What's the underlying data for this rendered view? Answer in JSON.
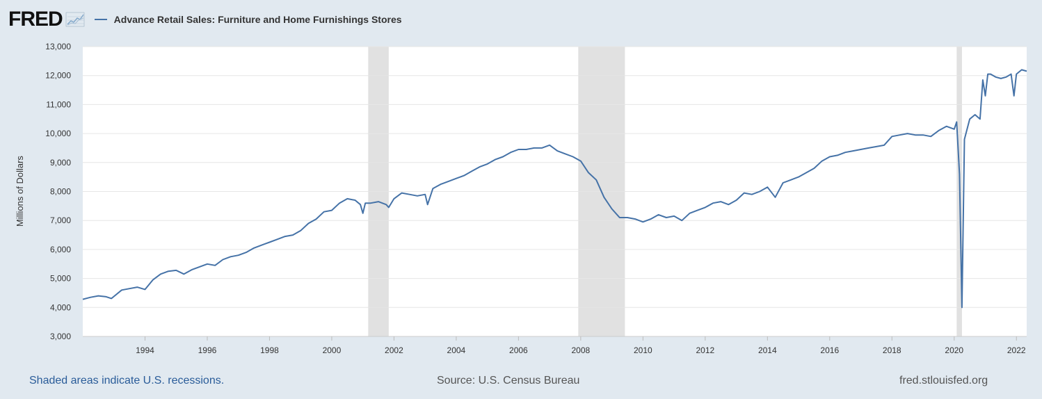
{
  "header": {
    "logo_text": "FRED",
    "series_title": "Advance Retail Sales: Furniture and Home Furnishings Stores"
  },
  "footer": {
    "recession_note": "Shaded areas indicate U.S. recessions.",
    "source": "Source: U.S. Census Bureau",
    "site": "fred.stlouisfed.org"
  },
  "colors": {
    "background": "#e1e9f0",
    "plot_background": "#ffffff",
    "line": "#4572a7",
    "recession_shade": "#e1e1e1",
    "gridline": "#e6e6e6",
    "footer_link": "#2a5c99"
  },
  "icons": [
    "fred-logo",
    "chart-icon"
  ],
  "chart_data": {
    "type": "line",
    "title": "Advance Retail Sales: Furniture and Home Furnishings Stores",
    "xlabel": "",
    "ylabel": "Millions of Dollars",
    "xlim": [
      1992.0,
      2022.33
    ],
    "ylim": [
      3000,
      13000
    ],
    "y_ticks": [
      3000,
      4000,
      5000,
      6000,
      7000,
      8000,
      9000,
      10000,
      11000,
      12000,
      13000
    ],
    "y_tick_labels": [
      "3,000",
      "4,000",
      "5,000",
      "6,000",
      "7,000",
      "8,000",
      "9,000",
      "10,000",
      "11,000",
      "12,000",
      "13,000"
    ],
    "x_ticks": [
      1994,
      1996,
      1998,
      2000,
      2002,
      2004,
      2006,
      2008,
      2010,
      2012,
      2014,
      2016,
      2018,
      2020,
      2022
    ],
    "x_tick_labels": [
      "1994",
      "1996",
      "1998",
      "2000",
      "2002",
      "2004",
      "2006",
      "2008",
      "2010",
      "2012",
      "2014",
      "2016",
      "2018",
      "2020",
      "2022"
    ],
    "grid": "horizontal",
    "legend": "top-left",
    "recessions": [
      [
        2001.17,
        2001.83
      ],
      [
        2007.92,
        2009.42
      ],
      [
        2020.08,
        2020.25
      ]
    ],
    "series": [
      {
        "name": "Advance Retail Sales: Furniture and Home Furnishings Stores",
        "x": [
          1992.0,
          1992.25,
          1992.5,
          1992.75,
          1992.92,
          1993.0,
          1993.25,
          1993.5,
          1993.75,
          1994.0,
          1994.25,
          1994.5,
          1994.75,
          1995.0,
          1995.25,
          1995.5,
          1995.75,
          1996.0,
          1996.25,
          1996.5,
          1996.75,
          1997.0,
          1997.25,
          1997.5,
          1997.75,
          1998.0,
          1998.25,
          1998.5,
          1998.75,
          1999.0,
          1999.25,
          1999.5,
          1999.75,
          2000.0,
          2000.25,
          2000.5,
          2000.75,
          2000.92,
          2001.0,
          2001.08,
          2001.25,
          2001.5,
          2001.75,
          2001.83,
          2002.0,
          2002.25,
          2002.5,
          2002.75,
          2003.0,
          2003.08,
          2003.25,
          2003.5,
          2003.75,
          2004.0,
          2004.25,
          2004.5,
          2004.75,
          2005.0,
          2005.25,
          2005.5,
          2005.75,
          2006.0,
          2006.25,
          2006.5,
          2006.75,
          2007.0,
          2007.25,
          2007.5,
          2007.75,
          2008.0,
          2008.25,
          2008.5,
          2008.75,
          2009.0,
          2009.25,
          2009.5,
          2009.75,
          2010.0,
          2010.25,
          2010.5,
          2010.75,
          2011.0,
          2011.25,
          2011.5,
          2011.75,
          2012.0,
          2012.25,
          2012.5,
          2012.75,
          2013.0,
          2013.25,
          2013.5,
          2013.75,
          2014.0,
          2014.25,
          2014.5,
          2014.75,
          2015.0,
          2015.25,
          2015.5,
          2015.75,
          2016.0,
          2016.25,
          2016.5,
          2016.75,
          2017.0,
          2017.25,
          2017.5,
          2017.75,
          2018.0,
          2018.25,
          2018.5,
          2018.75,
          2019.0,
          2019.25,
          2019.5,
          2019.75,
          2020.0,
          2020.08,
          2020.17,
          2020.25,
          2020.33,
          2020.5,
          2020.67,
          2020.83,
          2020.92,
          2021.0,
          2021.08,
          2021.17,
          2021.33,
          2021.5,
          2021.67,
          2021.83,
          2021.92,
          2022.0,
          2022.17,
          2022.33
        ],
        "values": [
          4280,
          4350,
          4400,
          4370,
          4310,
          4380,
          4600,
          4650,
          4700,
          4620,
          4950,
          5150,
          5250,
          5280,
          5150,
          5300,
          5400,
          5500,
          5450,
          5650,
          5750,
          5800,
          5900,
          6050,
          6150,
          6250,
          6350,
          6450,
          6500,
          6650,
          6900,
          7050,
          7300,
          7350,
          7600,
          7750,
          7700,
          7550,
          7250,
          7600,
          7600,
          7650,
          7550,
          7450,
          7750,
          7950,
          7900,
          7850,
          7900,
          7550,
          8100,
          8250,
          8350,
          8450,
          8550,
          8700,
          8850,
          8950,
          9100,
          9200,
          9350,
          9450,
          9450,
          9500,
          9500,
          9600,
          9400,
          9300,
          9200,
          9050,
          8650,
          8400,
          7800,
          7400,
          7100,
          7100,
          7050,
          6950,
          7050,
          7200,
          7100,
          7150,
          7000,
          7250,
          7350,
          7450,
          7600,
          7650,
          7550,
          7700,
          7950,
          7900,
          8000,
          8150,
          7800,
          8300,
          8400,
          8500,
          8650,
          8800,
          9050,
          9200,
          9250,
          9350,
          9400,
          9450,
          9500,
          9550,
          9600,
          9900,
          9950,
          10000,
          9950,
          9950,
          9900,
          10100,
          10250,
          10150,
          10400,
          8600,
          4000,
          9800,
          10500,
          10650,
          10500,
          11850,
          11300,
          12050,
          12050,
          11950,
          11900,
          11950,
          12050,
          11300,
          12050,
          12200,
          12150
        ]
      }
    ]
  }
}
